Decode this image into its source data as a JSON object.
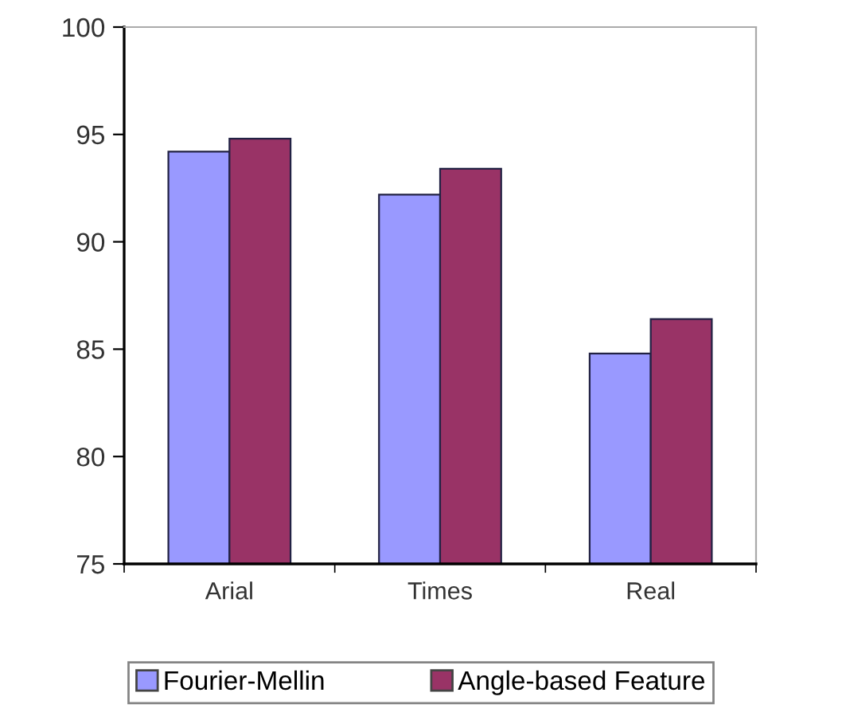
{
  "chart_data": {
    "type": "bar",
    "categories": [
      "Arial",
      "Times",
      "Real"
    ],
    "series": [
      {
        "name": "Fourier-Mellin",
        "color": "#9999ff",
        "values": [
          94.2,
          92.2,
          84.8
        ]
      },
      {
        "name": "Angle-based Feature",
        "color": "#993366",
        "values": [
          94.8,
          93.4,
          86.4
        ]
      }
    ],
    "ylim": [
      75,
      100
    ],
    "yticks": [
      75,
      80,
      85,
      90,
      95,
      100
    ],
    "grid": false,
    "legend": "bottom"
  }
}
